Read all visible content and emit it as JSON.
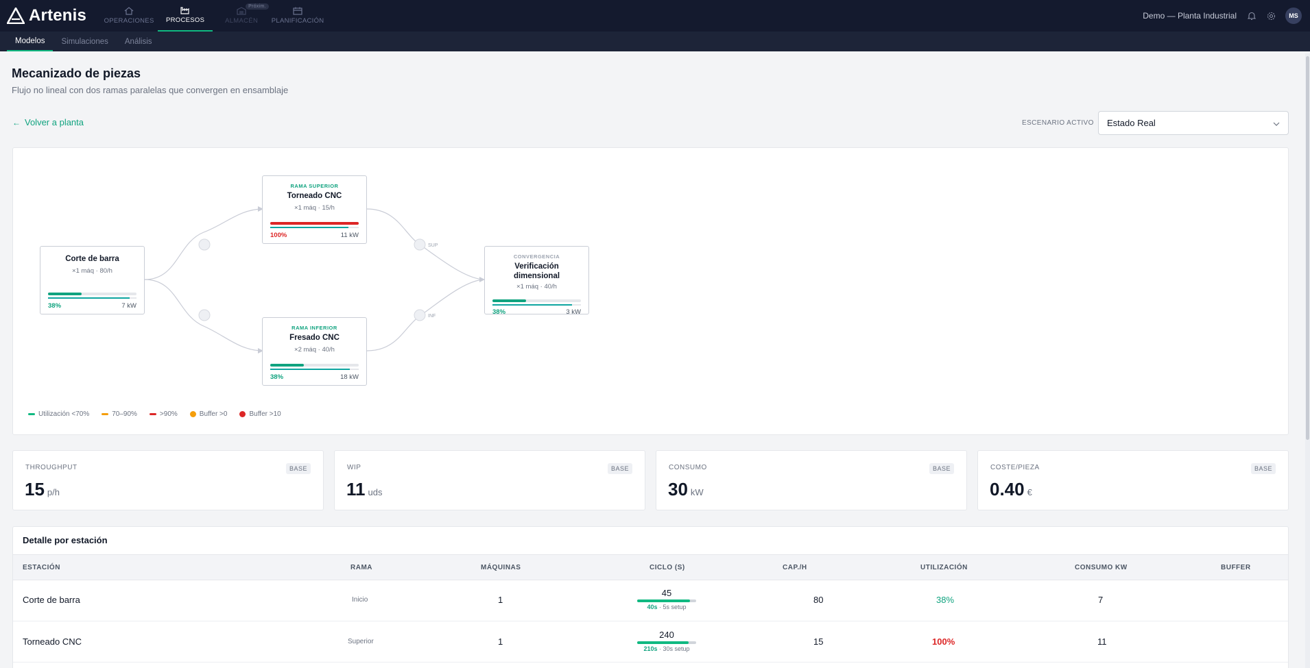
{
  "app": {
    "name": "Artenis",
    "context": "Demo — Planta Industrial",
    "user_initials": "MS"
  },
  "nav": {
    "tabs": [
      {
        "label": "OPERACIONES",
        "icon": "home-icon"
      },
      {
        "label": "PROCESOS",
        "icon": "factory-icon",
        "active": true
      },
      {
        "label": "ALMACÉN",
        "icon": "warehouse-icon",
        "badge": "Próxim."
      },
      {
        "label": "PLANIFICACIÓN",
        "icon": "calendar-icon"
      }
    ]
  },
  "subnav": {
    "tabs": [
      {
        "label": "Modelos",
        "active": true
      },
      {
        "label": "Simulaciones"
      },
      {
        "label": "Análisis"
      }
    ]
  },
  "page": {
    "title": "Mecanizado de piezas",
    "subtitle": "Flujo no lineal con dos ramas paralelas que convergen en ensamblaje",
    "back_label": "Volver a planta",
    "scenario_label": "ESCENARIO ACTIVO",
    "scenario_value": "Estado Real"
  },
  "flow": {
    "nodes": [
      {
        "kicker": "",
        "name": "Corte de barra",
        "meta": "×1 máq · 80/h",
        "util": "38%",
        "util_value": 38,
        "kw": "7 kW"
      },
      {
        "kicker": "RAMA SUPERIOR",
        "name": "Torneado CNC",
        "meta": "×1 máq · 15/h",
        "util": "100%",
        "util_value": 100,
        "kw": "11 kW"
      },
      {
        "kicker": "RAMA INFERIOR",
        "name": "Fresado CNC",
        "meta": "×2 máq · 40/h",
        "util": "38%",
        "util_value": 38,
        "kw": "18 kW"
      },
      {
        "kicker": "CONVERGENCIA",
        "name": "Verificación dimensional",
        "meta": "×1 máq · 40/h",
        "util": "38%",
        "util_value": 38,
        "kw": "3 kW"
      }
    ],
    "edge_labels": {
      "sup": "SUP",
      "inf": "INF"
    },
    "legend": [
      {
        "label": "Utilización <70%",
        "color": "#10b981",
        "kind": "dash"
      },
      {
        "label": "70–90%",
        "color": "#f59e0b",
        "kind": "dash"
      },
      {
        "label": ">90%",
        "color": "#dc2626",
        "kind": "dash"
      },
      {
        "label": "Buffer >0",
        "color": "#f59e0b",
        "kind": "dot"
      },
      {
        "label": "Buffer >10",
        "color": "#dc2626",
        "kind": "dot"
      }
    ]
  },
  "kpis": [
    {
      "label": "THROUGHPUT",
      "value": "15",
      "unit": "p/h",
      "badge": "BASE"
    },
    {
      "label": "WIP",
      "value": "11",
      "unit": "uds",
      "badge": "BASE"
    },
    {
      "label": "CONSUMO",
      "value": "30",
      "unit": "kW",
      "badge": "BASE"
    },
    {
      "label": "COSTE/PIEZA",
      "value": "0.40",
      "unit": "€",
      "badge": "BASE"
    }
  ],
  "table": {
    "title": "Detalle por estación",
    "headers": [
      "ESTACIÓN",
      "RAMA",
      "MÁQUINAS",
      "CICLO (S)",
      "CAP./H",
      "UTILIZACIÓN",
      "CONSUMO KW",
      "BUFFER"
    ],
    "rows": [
      {
        "station": "Corte de barra",
        "rama": "Inicio",
        "machines": "1",
        "cycle": "45",
        "cycle_run": "40s",
        "cycle_setup": "5s setup",
        "cycle_run_fraction": 0.89,
        "cap": "80",
        "util": "38%",
        "util_color": "#10a37f",
        "kw": "7",
        "buffer": ""
      },
      {
        "station": "Torneado CNC",
        "rama": "Superior",
        "machines": "1",
        "cycle": "240",
        "cycle_run": "210s",
        "cycle_setup": "30s setup",
        "cycle_run_fraction": 0.875,
        "cap": "15",
        "util": "100%",
        "util_color": "#dc2626",
        "kw": "11",
        "buffer": ""
      }
    ]
  },
  "colors": {
    "accent": "#10b981",
    "danger": "#dc2626",
    "nav_bg": "#141a2e"
  }
}
